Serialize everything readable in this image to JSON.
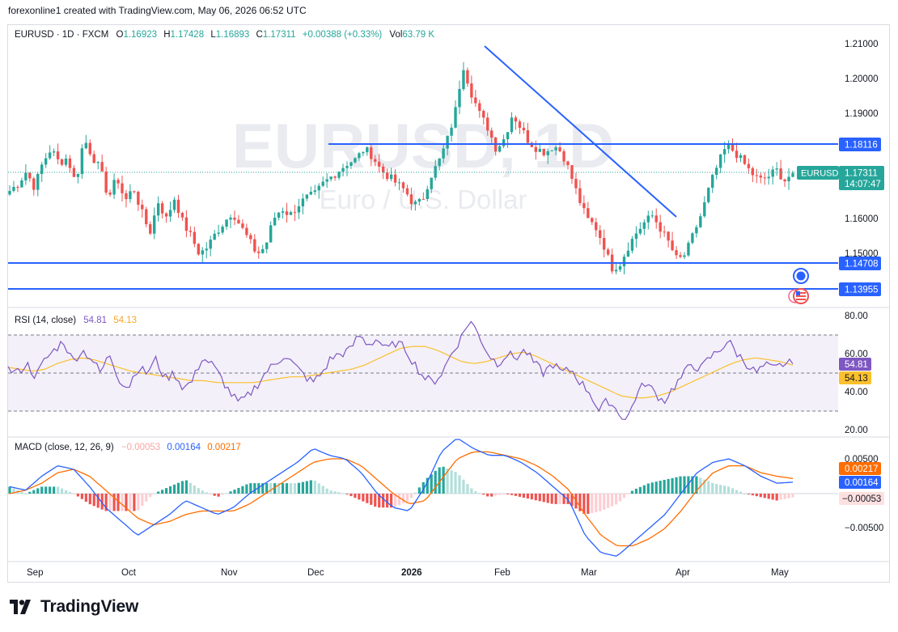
{
  "header": {
    "caption": "forexonline1 created with TradingView.com, May 06, 2026 06:52 UTC"
  },
  "legend": {
    "symbol": "EURUSD · 1D · FXCM",
    "o_label": "O",
    "o_value": "1.16923",
    "h_label": "H",
    "h_value": "1.17428",
    "l_label": "L",
    "l_value": "1.16893",
    "c_label": "C",
    "c_value": "1.17311",
    "change": "+0.00388 (+0.33%)",
    "vol_label": "Vol",
    "vol_value": "63.79 K"
  },
  "watermark": {
    "symbol": "EURUSD, 1D",
    "name": "Euro / U.S. Dollar"
  },
  "price_axis": {
    "ticks": [
      "1.21000",
      "1.20000",
      "1.19000",
      "1.16000",
      "1.15000"
    ],
    "tag_ticker": "EURUSD",
    "tag_price": "1.17311",
    "tag_countdown": "14:07:47",
    "levels": [
      "1.18116",
      "1.14708",
      "1.13955"
    ]
  },
  "rsi": {
    "label": "RSI (14, close)",
    "value_rsi": "54.81",
    "value_ma": "54.13",
    "ticks": [
      "80.00",
      "60.00",
      "40.00",
      "20.00"
    ]
  },
  "macd": {
    "label": "MACD (close, 12, 26, 9)",
    "value_hist": "−0.00053",
    "value_macd": "0.00164",
    "value_signal": "0.00217",
    "ticks": [
      "0.00500",
      "−0.00500"
    ],
    "tag_signal": "0.00217",
    "tag_macd": "0.00164",
    "tag_hist": "−0.00053"
  },
  "time_axis": [
    "Sep",
    "Oct",
    "Nov",
    "Dec",
    "2026",
    "Feb",
    "Mar",
    "Apr",
    "May"
  ],
  "footer": {
    "brand": "TradingView"
  },
  "colors": {
    "up": "#26a69a",
    "down": "#ef5350",
    "line": "#2962ff",
    "rsi": "#7e57c2",
    "rsi_ma": "#fbc02d",
    "macd": "#2962ff",
    "signal": "#ff6d00"
  },
  "chart_data": [
    {
      "type": "candlestick",
      "title": "EURUSD · 1D · FXCM",
      "ylim": [
        1.1365,
        1.2135
      ],
      "x_months": [
        "Sep",
        "Oct",
        "Nov",
        "Dec",
        "2026",
        "Feb",
        "Mar",
        "Apr",
        "May"
      ],
      "close_path": [
        1.168,
        1.17,
        1.1735,
        1.169,
        1.176,
        1.18,
        1.176,
        1.1775,
        1.17,
        1.183,
        1.178,
        1.174,
        1.166,
        1.172,
        1.165,
        1.169,
        1.162,
        1.156,
        1.165,
        1.16,
        1.166,
        1.159,
        1.155,
        1.15,
        1.152,
        1.156,
        1.159,
        1.162,
        1.158,
        1.154,
        1.15,
        1.152,
        1.16,
        1.163,
        1.161,
        1.164,
        1.166,
        1.167,
        1.17,
        1.172,
        1.174,
        1.176,
        1.177,
        1.18,
        1.178,
        1.174,
        1.172,
        1.17,
        1.168,
        1.164,
        1.165,
        1.172,
        1.176,
        1.182,
        1.19,
        1.204,
        1.196,
        1.19,
        1.186,
        1.18,
        1.183,
        1.19,
        1.186,
        1.182,
        1.18,
        1.179,
        1.181,
        1.179,
        1.173,
        1.166,
        1.16,
        1.158,
        1.153,
        1.146,
        1.147,
        1.152,
        1.156,
        1.159,
        1.161,
        1.157,
        1.153,
        1.148,
        1.15,
        1.156,
        1.162,
        1.17,
        1.176,
        1.181,
        1.179,
        1.176,
        1.173,
        1.171,
        1.172,
        1.174,
        1.171,
        1.1731
      ],
      "candles_shown": 196,
      "last": {
        "open": 1.16923,
        "high": 1.17428,
        "low": 1.16893,
        "close": 1.17311
      },
      "horizontal_levels": [
        1.18116,
        1.14708,
        1.13955
      ],
      "trendline": {
        "from": [
          1.2095,
          "late Jan"
        ],
        "to": [
          1.1598,
          "late Mar"
        ]
      }
    },
    {
      "type": "line",
      "title": "RSI (14, close)",
      "ylim": [
        20,
        80
      ],
      "bands": [
        70,
        50,
        30
      ],
      "rsi_path": [
        52,
        50,
        55,
        48,
        57,
        62,
        67,
        56,
        62,
        58,
        50,
        60,
        47,
        42,
        53,
        50,
        57,
        47,
        50,
        42,
        46,
        58,
        55,
        48,
        40,
        34,
        38,
        44,
        51,
        55,
        60,
        54,
        49,
        45,
        50,
        58,
        60,
        62,
        70,
        65,
        68,
        62,
        66,
        63,
        55,
        48,
        45,
        50,
        60,
        68,
        78,
        70,
        60,
        55,
        60,
        58,
        62,
        55,
        50,
        55,
        50,
        52,
        45,
        40,
        30,
        36,
        30,
        25,
        38,
        45,
        40,
        35,
        42,
        48,
        55,
        52,
        58,
        62,
        67,
        60,
        55,
        50,
        54,
        52,
        55,
        54.81
      ],
      "ma_path": [
        53,
        52,
        51,
        52,
        55,
        57,
        58,
        57,
        55,
        53,
        51,
        50,
        49,
        48,
        47,
        46,
        46,
        45,
        45,
        45,
        45,
        46,
        47,
        48,
        48,
        49,
        50,
        51,
        52,
        54,
        57,
        60,
        63,
        64,
        64,
        62,
        59,
        56,
        55,
        56,
        58,
        60,
        61,
        59,
        56,
        53,
        50,
        47,
        44,
        41,
        38,
        37,
        37,
        38,
        40,
        43,
        46,
        49,
        52,
        55,
        57,
        58,
        57,
        56,
        54.13
      ]
    },
    {
      "type": "line",
      "title": "MACD (close, 12, 26, 9)",
      "ylim": [
        -0.0105,
        0.0105
      ],
      "macd_path": [
        0.001,
        0.0005,
        0.0025,
        0.004,
        0.0035,
        0.001,
        -0.002,
        -0.004,
        -0.006,
        -0.0045,
        -0.003,
        -0.001,
        -0.002,
        -0.003,
        -0.002,
        0.0,
        0.0015,
        0.003,
        0.0045,
        0.0065,
        0.0055,
        0.005,
        0.003,
        0.0,
        -0.002,
        -0.0025,
        0.001,
        0.006,
        0.008,
        0.0065,
        0.0055,
        0.0055,
        0.0045,
        0.003,
        0.001,
        -0.001,
        -0.006,
        -0.0085,
        -0.009,
        -0.007,
        -0.005,
        -0.003,
        0.0,
        0.003,
        0.0045,
        0.005,
        0.004,
        0.0025,
        0.0015,
        0.00164
      ],
      "signal_path": [
        0.0,
        0.0005,
        0.0015,
        0.003,
        0.0035,
        0.0025,
        0.0005,
        -0.0015,
        -0.0035,
        -0.0045,
        -0.004,
        -0.003,
        -0.0025,
        -0.0025,
        -0.0025,
        -0.0015,
        0.0,
        0.0015,
        0.003,
        0.0045,
        0.005,
        0.005,
        0.004,
        0.002,
        0.0,
        -0.0015,
        -0.001,
        0.002,
        0.005,
        0.006,
        0.006,
        0.0055,
        0.005,
        0.004,
        0.0025,
        0.0005,
        -0.003,
        -0.006,
        -0.0075,
        -0.0075,
        -0.0065,
        -0.005,
        -0.0025,
        0.0005,
        0.003,
        0.004,
        0.004,
        0.003,
        0.0025,
        0.00217
      ]
    }
  ]
}
